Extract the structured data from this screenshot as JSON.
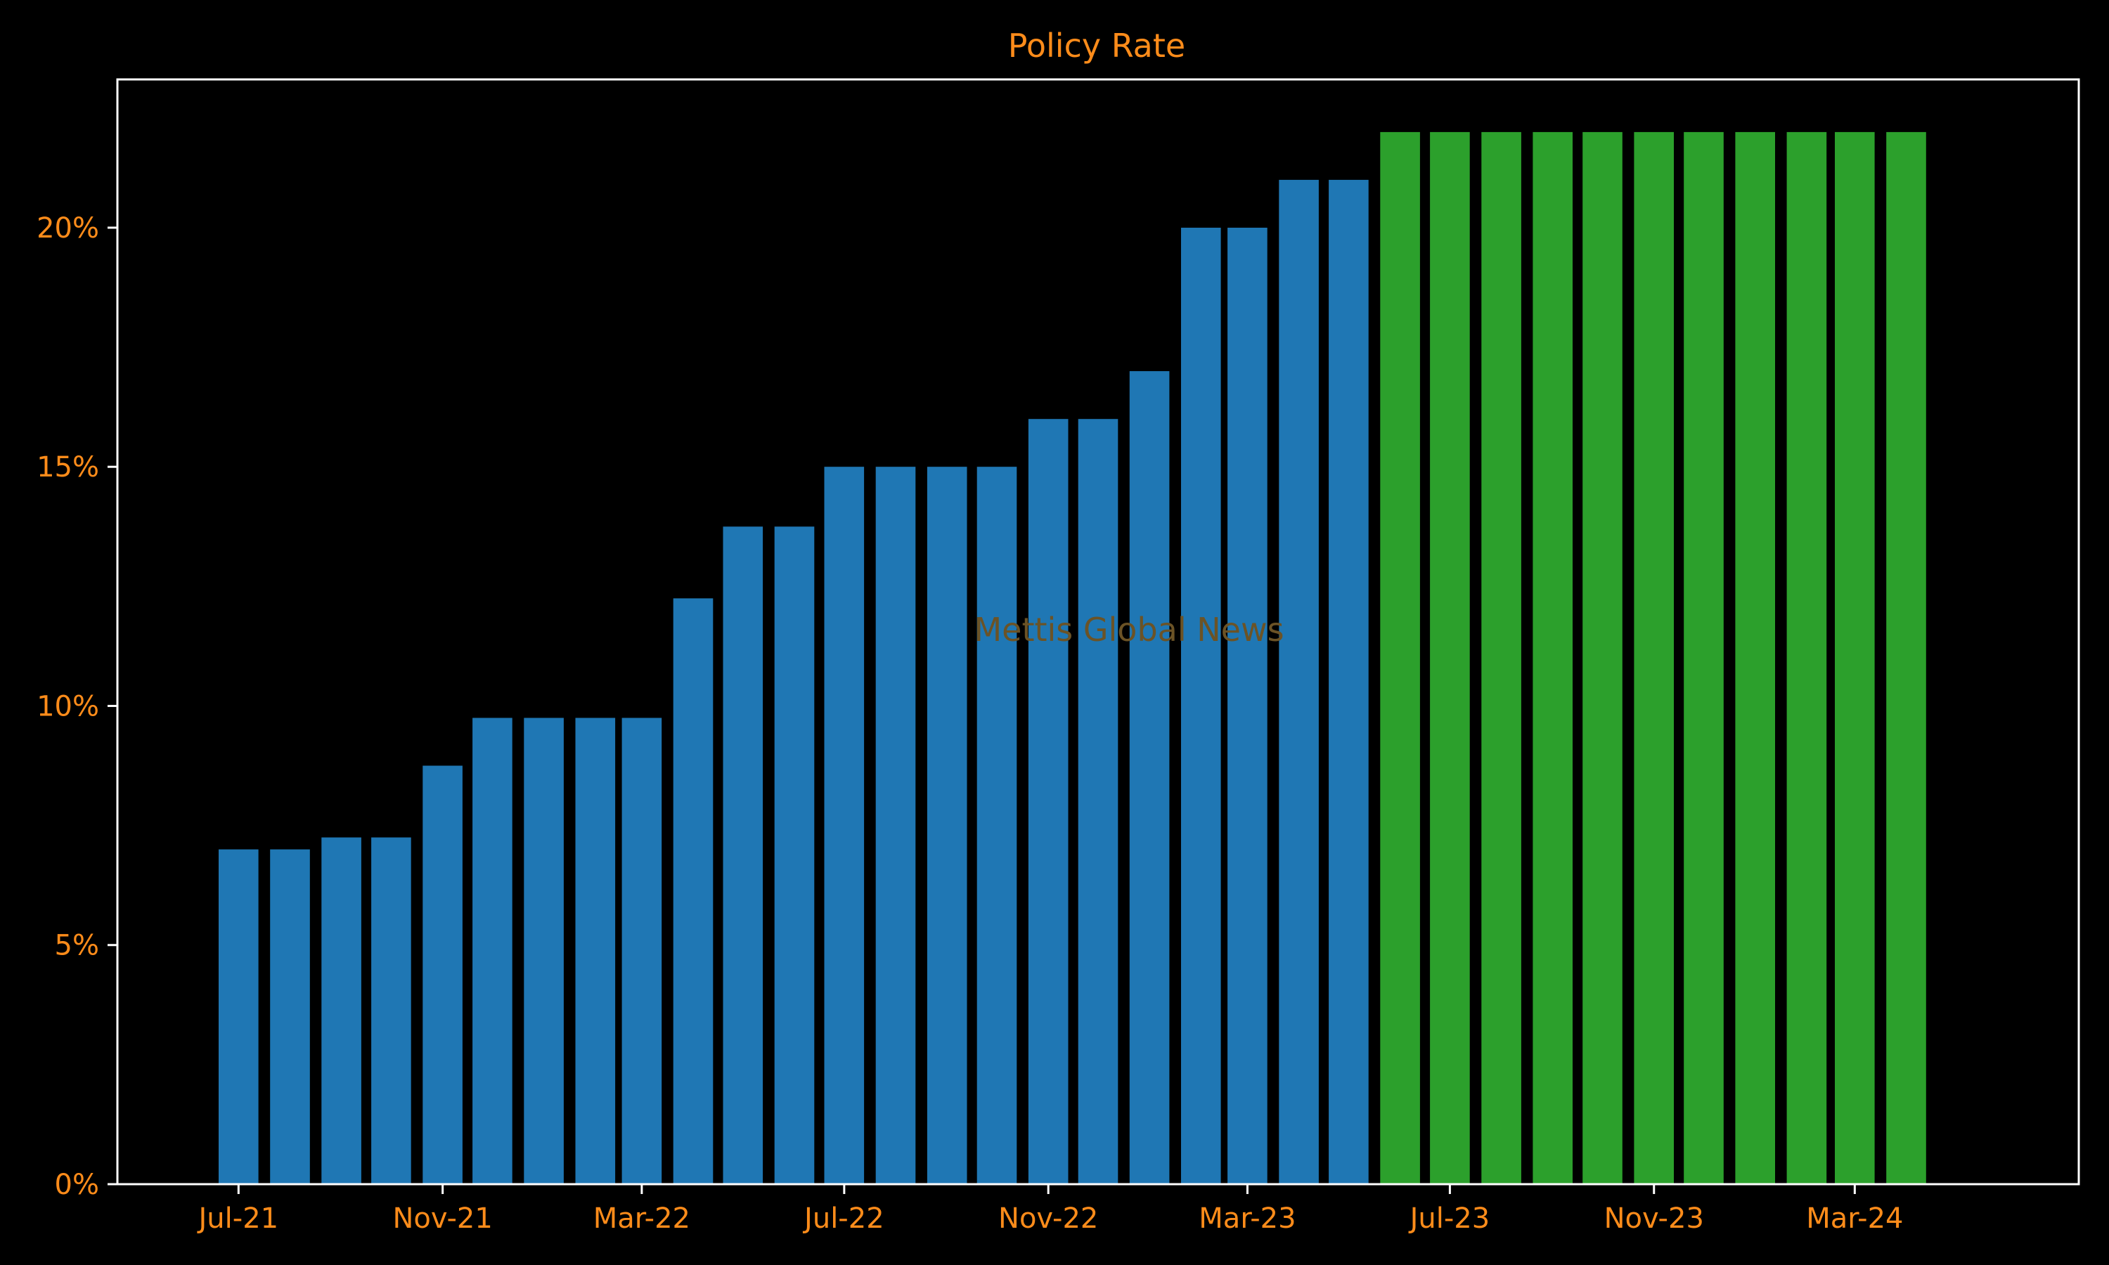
{
  "chart_data": {
    "type": "bar",
    "title": "Policy Rate",
    "watermark": "Mettis Global News",
    "xlabel": "",
    "ylabel": "",
    "ylim": [
      0,
      23.1
    ],
    "yticks": [
      0,
      5,
      10,
      15,
      20
    ],
    "ytick_labels": [
      "0%",
      "5%",
      "10%",
      "15%",
      "20%"
    ],
    "xlim": [
      "2021-04-19",
      "2024-07-14"
    ],
    "xtick_dates": [
      "2021-07-01",
      "2021-11-01",
      "2022-03-01",
      "2022-07-01",
      "2022-11-01",
      "2023-03-01",
      "2023-07-01",
      "2023-11-01",
      "2024-03-01"
    ],
    "xtick_labels": [
      "Jul-21",
      "Nov-21",
      "Mar-22",
      "Jul-22",
      "Nov-22",
      "Mar-23",
      "Jul-23",
      "Nov-23",
      "Mar-24"
    ],
    "grid": false,
    "colors": {
      "background": "#000000",
      "text": "#ff8c1a",
      "axes": "#ffffff",
      "watermark": "#6b5326",
      "actual": "#1f77b4",
      "forecast": "#2ca02c"
    },
    "series": [
      {
        "color": "#1f77b4",
        "x": [
          "2021-07-01",
          "2021-08-01",
          "2021-09-01",
          "2021-10-01",
          "2021-11-01",
          "2021-12-01",
          "2022-01-01",
          "2022-02-01",
          "2022-03-01",
          "2022-04-01",
          "2022-05-01",
          "2022-06-01",
          "2022-07-01",
          "2022-08-01",
          "2022-09-01",
          "2022-10-01",
          "2022-11-01",
          "2022-12-01",
          "2023-01-01",
          "2023-02-01",
          "2023-03-01",
          "2023-04-01",
          "2023-05-01"
        ],
        "values": [
          7,
          7,
          7.25,
          7.25,
          8.75,
          9.75,
          9.75,
          9.75,
          9.75,
          12.25,
          13.75,
          13.75,
          15,
          15,
          15,
          15,
          16,
          16,
          17,
          20,
          20,
          21,
          21
        ]
      },
      {
        "color": "#2ca02c",
        "x": [
          "2023-06-01",
          "2023-07-01",
          "2023-08-01",
          "2023-09-01",
          "2023-10-01",
          "2023-11-01",
          "2023-12-01",
          "2024-01-01",
          "2024-02-01",
          "2024-03-01",
          "2024-04-01"
        ],
        "values": [
          22,
          22,
          22,
          22,
          22,
          22,
          22,
          22,
          22,
          22,
          22
        ]
      }
    ]
  }
}
